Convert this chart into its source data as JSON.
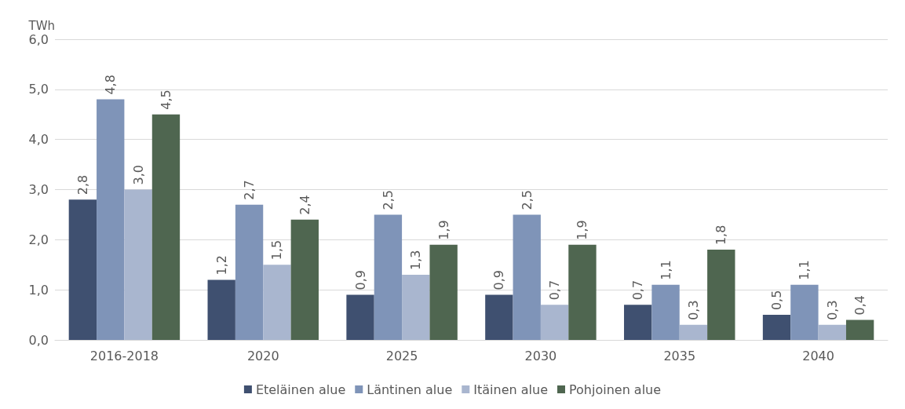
{
  "chart_data": {
    "type": "bar",
    "ylabel": "TWh",
    "categories": [
      "2016-2018",
      "2020",
      "2025",
      "2030",
      "2035",
      "2040"
    ],
    "series": [
      {
        "name": "Eteläinen alue",
        "color": "#3f5070",
        "values": [
          2.8,
          1.2,
          0.9,
          0.9,
          0.7,
          0.5
        ],
        "value_labels": [
          "2,8",
          "1,2",
          "0,9",
          "0,9",
          "0,7",
          "0,5"
        ]
      },
      {
        "name": "Läntinen alue",
        "color": "#7f94b8",
        "values": [
          4.8,
          2.7,
          2.5,
          2.5,
          1.1,
          1.1
        ],
        "value_labels": [
          "4,8",
          "2,7",
          "2,5",
          "2,5",
          "1,1",
          "1,1"
        ]
      },
      {
        "name": "Itäinen alue",
        "color": "#a9b6cf",
        "values": [
          3.0,
          1.5,
          1.3,
          0.7,
          0.3,
          0.3
        ],
        "value_labels": [
          "3,0",
          "1,5",
          "1,3",
          "0,7",
          "0,3",
          "0,3"
        ]
      },
      {
        "name": "Pohjoinen alue",
        "color": "#4f6650",
        "values": [
          4.5,
          2.4,
          1.9,
          1.9,
          1.8,
          0.4
        ],
        "value_labels": [
          "4,5",
          "2,4",
          "1,9",
          "1,9",
          "1,8",
          "0,4"
        ]
      }
    ],
    "ylim": [
      0,
      6
    ],
    "yticks": [
      {
        "value": 0,
        "label": "0,0"
      },
      {
        "value": 1,
        "label": "1,0"
      },
      {
        "value": 2,
        "label": "2,0"
      },
      {
        "value": 3,
        "label": "3,0"
      },
      {
        "value": 4,
        "label": "4,0"
      },
      {
        "value": 5,
        "label": "5,0"
      },
      {
        "value": 6,
        "label": "6,0"
      }
    ],
    "grid": "y",
    "legend": "bottom"
  }
}
